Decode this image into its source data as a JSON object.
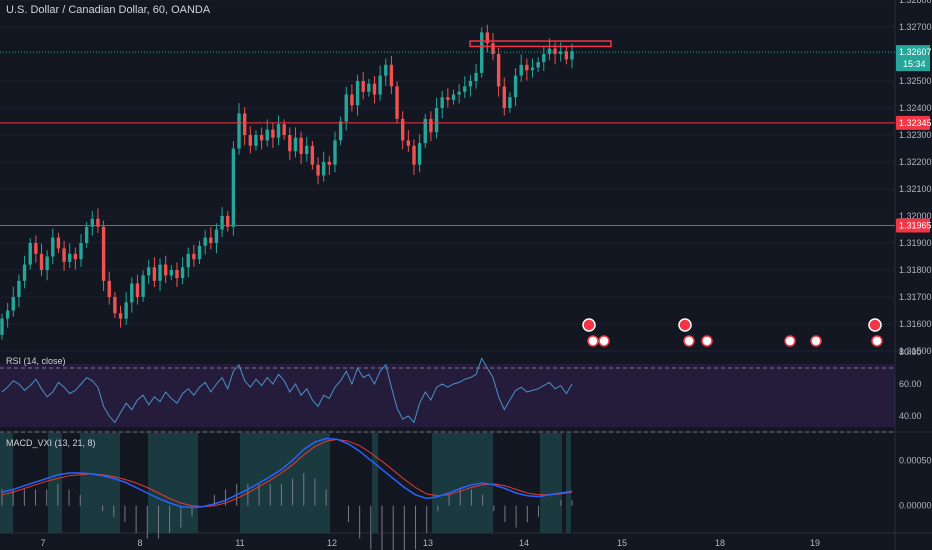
{
  "chart_data": [
    {
      "type": "candlestick",
      "title": "U.S. Dollar / Canadian Dollar, 60, OANDA",
      "x_labels": [
        "7",
        "8",
        "11",
        "12",
        "13",
        "14",
        "15",
        "18",
        "19"
      ],
      "ylim": [
        1.315,
        1.328
      ],
      "y_ticks": [
        "1.32800",
        "1.32700",
        "1.32500",
        "1.32400",
        "1.32300",
        "1.32200",
        "1.32100",
        "1.32000",
        "1.31900",
        "1.31800",
        "1.31700",
        "1.31600",
        "1.31500"
      ],
      "horizontal_lines": [
        {
          "value": 1.32345,
          "label": "1.32345",
          "color": "#f23645"
        },
        {
          "value": 1.31965,
          "label": "1.31965",
          "color": "#f23645"
        }
      ],
      "last_price": {
        "value": 1.32607,
        "label": "1.32607",
        "countdown": "15:34",
        "color": "#26a69a"
      },
      "resistance_zone": {
        "from": 1.32628,
        "to": 1.32648,
        "color": "#f23645"
      },
      "up_color": "#26a69a",
      "down_color": "#ef5350",
      "candles_close": [
        1.3162,
        1.3165,
        1.317,
        1.3176,
        1.3182,
        1.319,
        1.3186,
        1.318,
        1.3185,
        1.3192,
        1.3188,
        1.3183,
        1.3186,
        1.3184,
        1.319,
        1.3196,
        1.3199,
        1.3196,
        1.3176,
        1.317,
        1.3164,
        1.3162,
        1.3168,
        1.3175,
        1.317,
        1.3178,
        1.3181,
        1.3176,
        1.3182,
        1.3178,
        1.318,
        1.3177,
        1.3181,
        1.3186,
        1.3184,
        1.3189,
        1.3192,
        1.319,
        1.3195,
        1.32,
        1.3196,
        1.3225,
        1.3238,
        1.323,
        1.3226,
        1.323,
        1.3228,
        1.3232,
        1.3229,
        1.3234,
        1.323,
        1.3224,
        1.3229,
        1.3223,
        1.3226,
        1.3219,
        1.3215,
        1.322,
        1.3219,
        1.3228,
        1.3235,
        1.3245,
        1.3241,
        1.325,
        1.3246,
        1.3249,
        1.3245,
        1.3252,
        1.3256,
        1.3248,
        1.3236,
        1.3228,
        1.3226,
        1.3219,
        1.3227,
        1.3236,
        1.3231,
        1.324,
        1.3244,
        1.3243,
        1.3245,
        1.3246,
        1.3248,
        1.325,
        1.3253,
        1.3268,
        1.3264,
        1.326,
        1.3248,
        1.324,
        1.3244,
        1.3252,
        1.3256,
        1.3254,
        1.3255,
        1.3257,
        1.326,
        1.3262,
        1.326,
        1.3261,
        1.3258,
        1.3261
      ],
      "series": [
        {
          "name": "RSI (14, close)",
          "ylim": [
            30,
            80
          ],
          "y_ticks": [
            "80.00",
            "60.00",
            "40.00"
          ],
          "bands": [
            70,
            30
          ],
          "color": "#4a90c8",
          "values": [
            55,
            58,
            62,
            60,
            56,
            59,
            63,
            57,
            52,
            55,
            61,
            58,
            54,
            56,
            60,
            64,
            62,
            58,
            46,
            40,
            36,
            42,
            48,
            44,
            50,
            53,
            47,
            52,
            49,
            55,
            51,
            48,
            54,
            57,
            53,
            58,
            61,
            55,
            60,
            64,
            57,
            68,
            72,
            62,
            58,
            63,
            59,
            64,
            60,
            66,
            62,
            55,
            60,
            53,
            57,
            50,
            46,
            53,
            51,
            58,
            62,
            68,
            60,
            70,
            64,
            66,
            60,
            68,
            72,
            58,
            45,
            38,
            40,
            36,
            48,
            55,
            50,
            58,
            60,
            58,
            60,
            61,
            63,
            64,
            66,
            76,
            70,
            64,
            52,
            44,
            50,
            56,
            58,
            55,
            56,
            57,
            59,
            61,
            57,
            59,
            54,
            60
          ]
        },
        {
          "name": "MACD_VXI (13, 21, 8)",
          "ylim": [
            -0.0003,
            0.0008
          ],
          "y_ticks": [
            "0.00050",
            "0.00000"
          ],
          "macd_color": "#2962ff",
          "signal_color": "#e53935",
          "hist_color": "#787b86",
          "macd": [
            0.00015,
            0.00018,
            0.00022,
            0.00026,
            0.0003,
            0.00034,
            0.00036,
            0.00036,
            0.00035,
            0.00033,
            0.0003,
            0.00026,
            0.0002,
            0.00014,
            8e-05,
            3e-05,
            -1e-05,
            -2e-05,
            -1e-05,
            2e-05,
            6e-05,
            0.00012,
            0.00018,
            0.00025,
            0.00032,
            0.0004,
            0.0005,
            0.00062,
            0.0007,
            0.00074,
            0.00073,
            0.00068,
            0.0006,
            0.0005,
            0.0004,
            0.0003,
            0.0002,
            0.00012,
            8e-05,
            0.0001,
            0.00014,
            0.00019,
            0.00023,
            0.00025,
            0.00023,
            0.00019,
            0.00014,
            0.00011,
            0.0001,
            0.00012,
            0.00014,
            0.00016
          ],
          "signal": [
            0.00012,
            0.00015,
            0.00019,
            0.00023,
            0.00027,
            0.0003,
            0.00033,
            0.00034,
            0.00035,
            0.00034,
            0.00032,
            0.00029,
            0.00025,
            0.0002,
            0.00014,
            8e-05,
            3e-05,
            0.0,
            -1e-05,
            0.0,
            3e-05,
            8e-05,
            0.00014,
            0.00021,
            0.00028,
            0.00036,
            0.00045,
            0.00056,
            0.00065,
            0.00071,
            0.00073,
            0.00071,
            0.00066,
            0.00058,
            0.00049,
            0.00039,
            0.00029,
            0.0002,
            0.00013,
            0.00011,
            0.00012,
            0.00016,
            0.0002,
            0.00023,
            0.00024,
            0.00022,
            0.00018,
            0.00014,
            0.00012,
            0.00012,
            0.00013,
            0.00015
          ]
        }
      ]
    }
  ]
}
